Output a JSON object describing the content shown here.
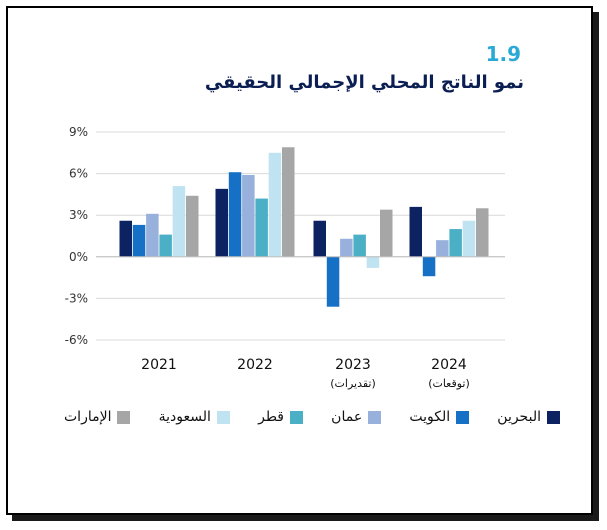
{
  "figure": {
    "number": "1.9",
    "title": "نمو الناتج المحلي الإجمالي الحقيقي"
  },
  "chart_data": {
    "type": "bar",
    "title": "نمو الناتج المحلي الإجمالي الحقيقي",
    "categories": [
      "2021",
      "2022",
      "2023",
      "2024"
    ],
    "category_subtitles": [
      "",
      "",
      "(تقديرات)",
      "(توقعات)"
    ],
    "y_ticks": [
      "9%",
      "6%",
      "3%",
      "0%",
      "-3%",
      "-6%"
    ],
    "ylim": [
      -6,
      9
    ],
    "grid": true,
    "legend_position": "bottom",
    "series": [
      {
        "name": "البحرين",
        "color": "#0d2260",
        "values": [
          2.6,
          4.9,
          2.6,
          3.6
        ]
      },
      {
        "name": "الكويت",
        "color": "#1670c6",
        "values": [
          2.3,
          6.1,
          -3.6,
          -1.4
        ]
      },
      {
        "name": "عمان",
        "color": "#98b1dc",
        "values": [
          3.1,
          5.9,
          1.3,
          1.2
        ]
      },
      {
        "name": "قطر",
        "color": "#4bb0c5",
        "values": [
          1.6,
          4.2,
          1.6,
          2.0
        ]
      },
      {
        "name": "السعودية",
        "color": "#bfe3f0",
        "values": [
          5.1,
          7.5,
          -0.8,
          2.6
        ]
      },
      {
        "name": "الإمارات",
        "color": "#a6a6a6",
        "values": [
          4.4,
          7.9,
          3.4,
          3.5
        ]
      }
    ]
  }
}
